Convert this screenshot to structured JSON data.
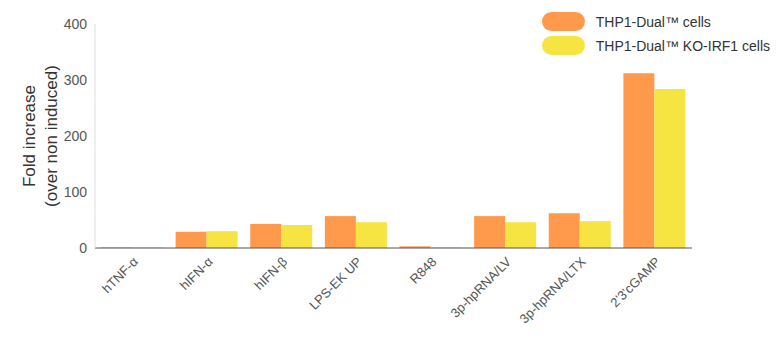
{
  "chart_data": {
    "type": "bar",
    "y_label": [
      "Fold increase",
      "(over non induced)"
    ],
    "categories": [
      "hTNF-α",
      "hIFN-α",
      "hIFN-β",
      "LPS-EK UP",
      "R848",
      "3p-hpRNA/LV",
      "3p-hpRNA/LTX",
      "2'3'cGAMP"
    ],
    "series": [
      {
        "name": "THP1-Dual™ cells",
        "color": "#ff9a4d",
        "values": [
          1,
          29,
          43,
          57,
          3,
          57,
          62,
          312
        ]
      },
      {
        "name": "THP1-Dual™ KO-IRF1 cells",
        "color": "#f6e443",
        "values": [
          1,
          30,
          41,
          46,
          1,
          46,
          48,
          284
        ]
      }
    ],
    "ylim": [
      0,
      400
    ],
    "yticks": [
      0,
      100,
      200,
      300,
      400
    ],
    "grid": false,
    "legend": "upper right"
  }
}
